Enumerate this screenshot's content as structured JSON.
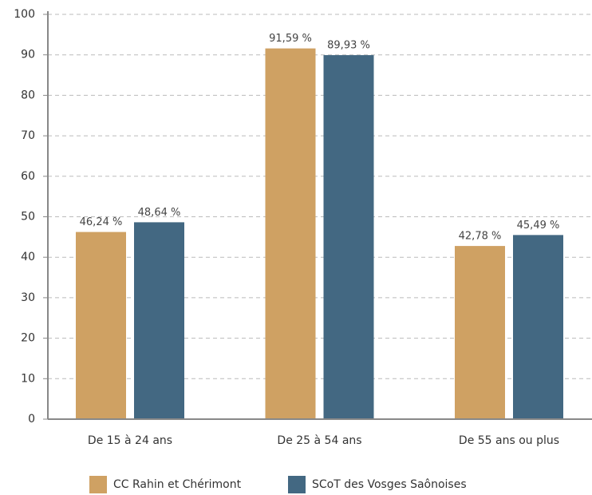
{
  "chart_data": {
    "type": "bar",
    "categories": [
      "De 15 à 24 ans",
      "De 25 à 54 ans",
      "De 55 ans ou plus"
    ],
    "series": [
      {
        "name": "CC Rahin et Chérimont",
        "color": "#cfa163",
        "values": [
          46.24,
          91.59,
          42.78
        ],
        "value_labels": [
          "46,24 %",
          "91,59 %",
          "42,78 %"
        ]
      },
      {
        "name": "SCoT des Vosges Saônoises",
        "color": "#436882",
        "values": [
          48.64,
          89.93,
          45.49
        ],
        "value_labels": [
          "48,64 %",
          "89,93 %",
          "45,49 %"
        ]
      }
    ],
    "ylim": [
      0,
      100
    ],
    "yticks": [
      0,
      10,
      20,
      30,
      40,
      50,
      60,
      70,
      80,
      90,
      100
    ],
    "grid": true
  }
}
